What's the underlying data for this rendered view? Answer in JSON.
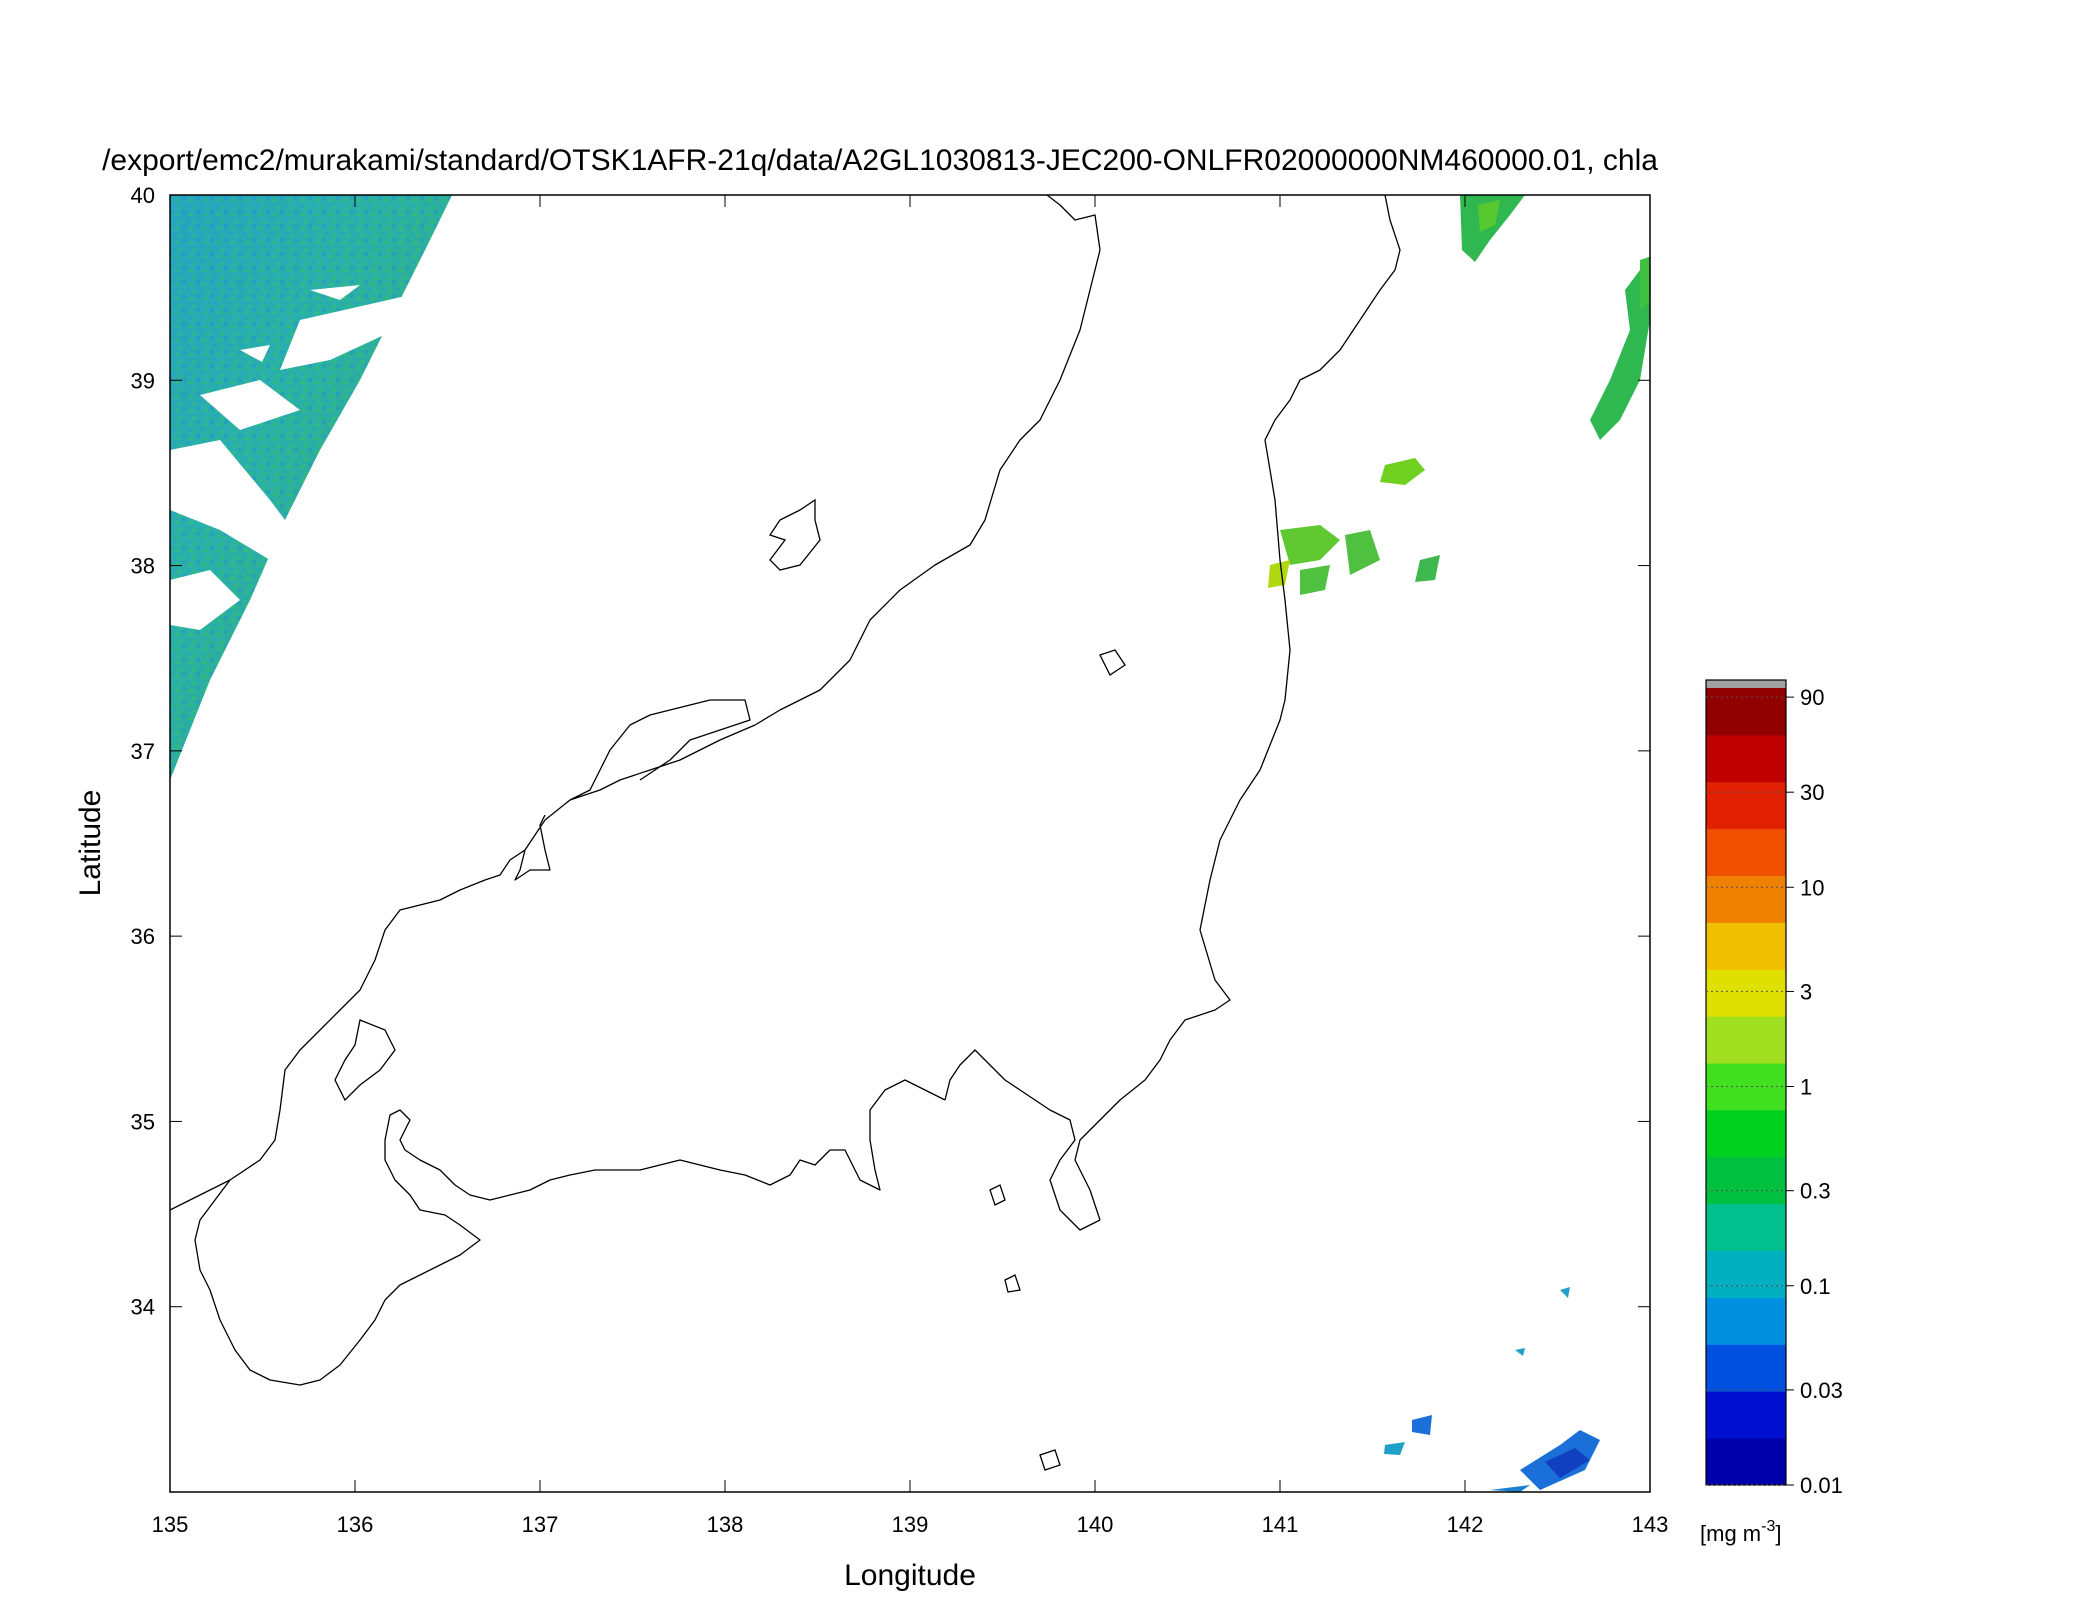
{
  "map": {
    "title": "/export/emc2/murakami/standard/OTSK1AFR-21q/data/A2GL1030813-JEC200-ONLFR02000000NM460000.01, chla",
    "xlabel": "Longitude",
    "ylabel": "Latitude",
    "lon_range": [
      135,
      143
    ],
    "lat_range": [
      33,
      40
    ],
    "lon_ticks": [
      "135",
      "136",
      "137",
      "138",
      "139",
      "140",
      "141",
      "142",
      "143"
    ],
    "lat_ticks": [
      "34",
      "35",
      "36",
      "37",
      "38",
      "39",
      "40"
    ]
  },
  "colorbar": {
    "unit_prefix": "[mg m",
    "unit_exp": "-3",
    "unit_suffix": "]",
    "scale": "log",
    "range": [
      0.01,
      100
    ],
    "tick_labels": [
      "90",
      "30",
      "10",
      "3",
      "1",
      "0.3",
      "0.1",
      "0.03",
      "0.01"
    ],
    "colors": [
      "#0000aa",
      "#0010d0",
      "#0050e0",
      "#0090e0",
      "#00b0c0",
      "#00c090",
      "#00c040",
      "#00d020",
      "#40e020",
      "#a0e020",
      "#e0e000",
      "#f0c000",
      "#f08000",
      "#f05000",
      "#e02000",
      "#c00000",
      "#900000"
    ]
  },
  "colors": {
    "ocean_low": "#1a9ad0",
    "ocean_mid": "#22b090",
    "ocean_green": "#30c030",
    "coast": "#000000",
    "frame": "#000000"
  }
}
